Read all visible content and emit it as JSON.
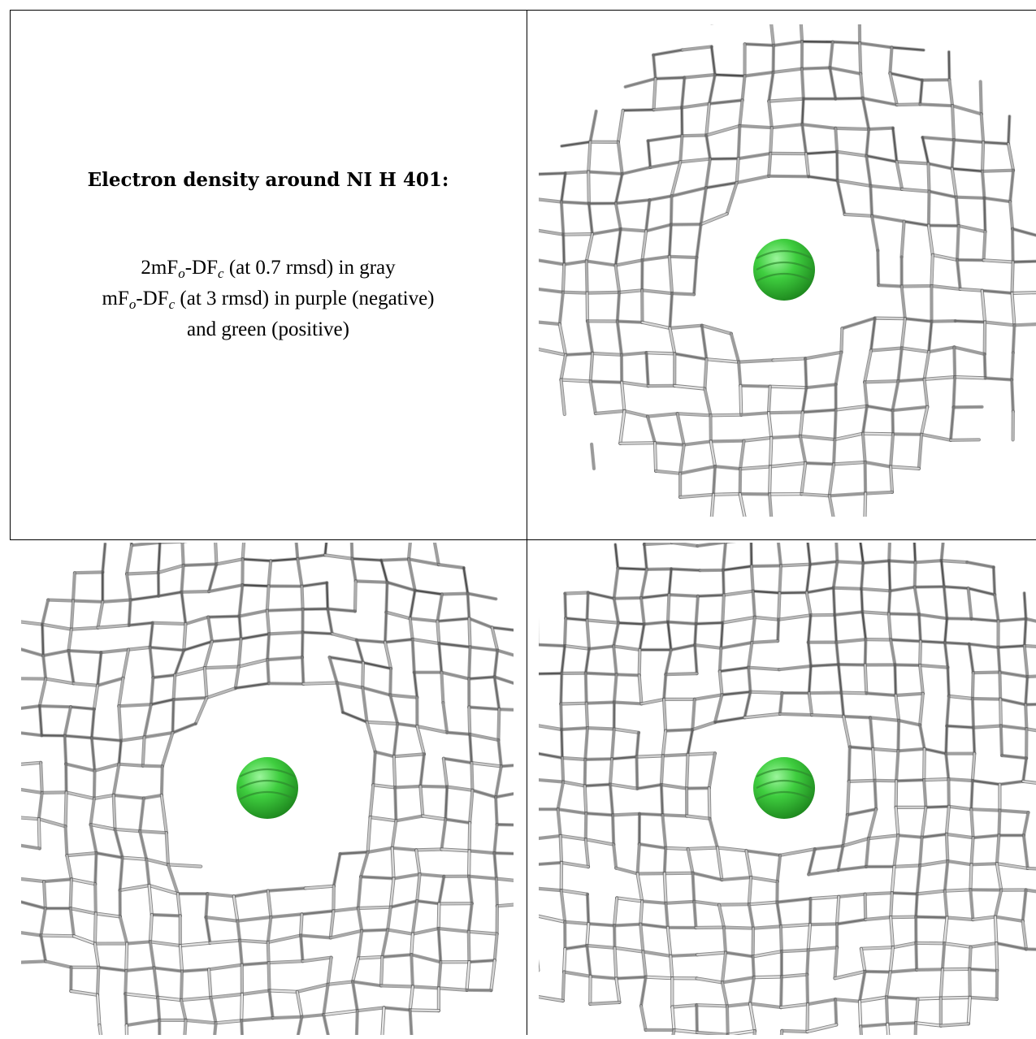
{
  "caption": {
    "title": "Electron density around NI H 401:",
    "line1": {
      "a": "2mF",
      "sub1": "o",
      "b": "-DF",
      "sub2": "c",
      "c": " (at 0.7 rmsd) in gray"
    },
    "line2": {
      "a": "mF",
      "sub1": "o",
      "b": "-DF",
      "sub2": "c",
      "c": " (at 3 rmsd) in purple (negative)"
    },
    "line3": "and green (positive)"
  },
  "colors": {
    "mesh_gray": "#9a9a9a",
    "mesh_dark": "#4a4a4a",
    "mesh_light": "#d8d8d8",
    "sphere_green": "#3fce3f",
    "sphere_dark": "#1f8a1f",
    "border": "#000000"
  },
  "views": [
    {
      "name": "view-top-right",
      "atom": "NI H 401"
    },
    {
      "name": "view-bottom-left",
      "atom": "NI H 401"
    },
    {
      "name": "view-bottom-right",
      "atom": "NI H 401"
    }
  ]
}
